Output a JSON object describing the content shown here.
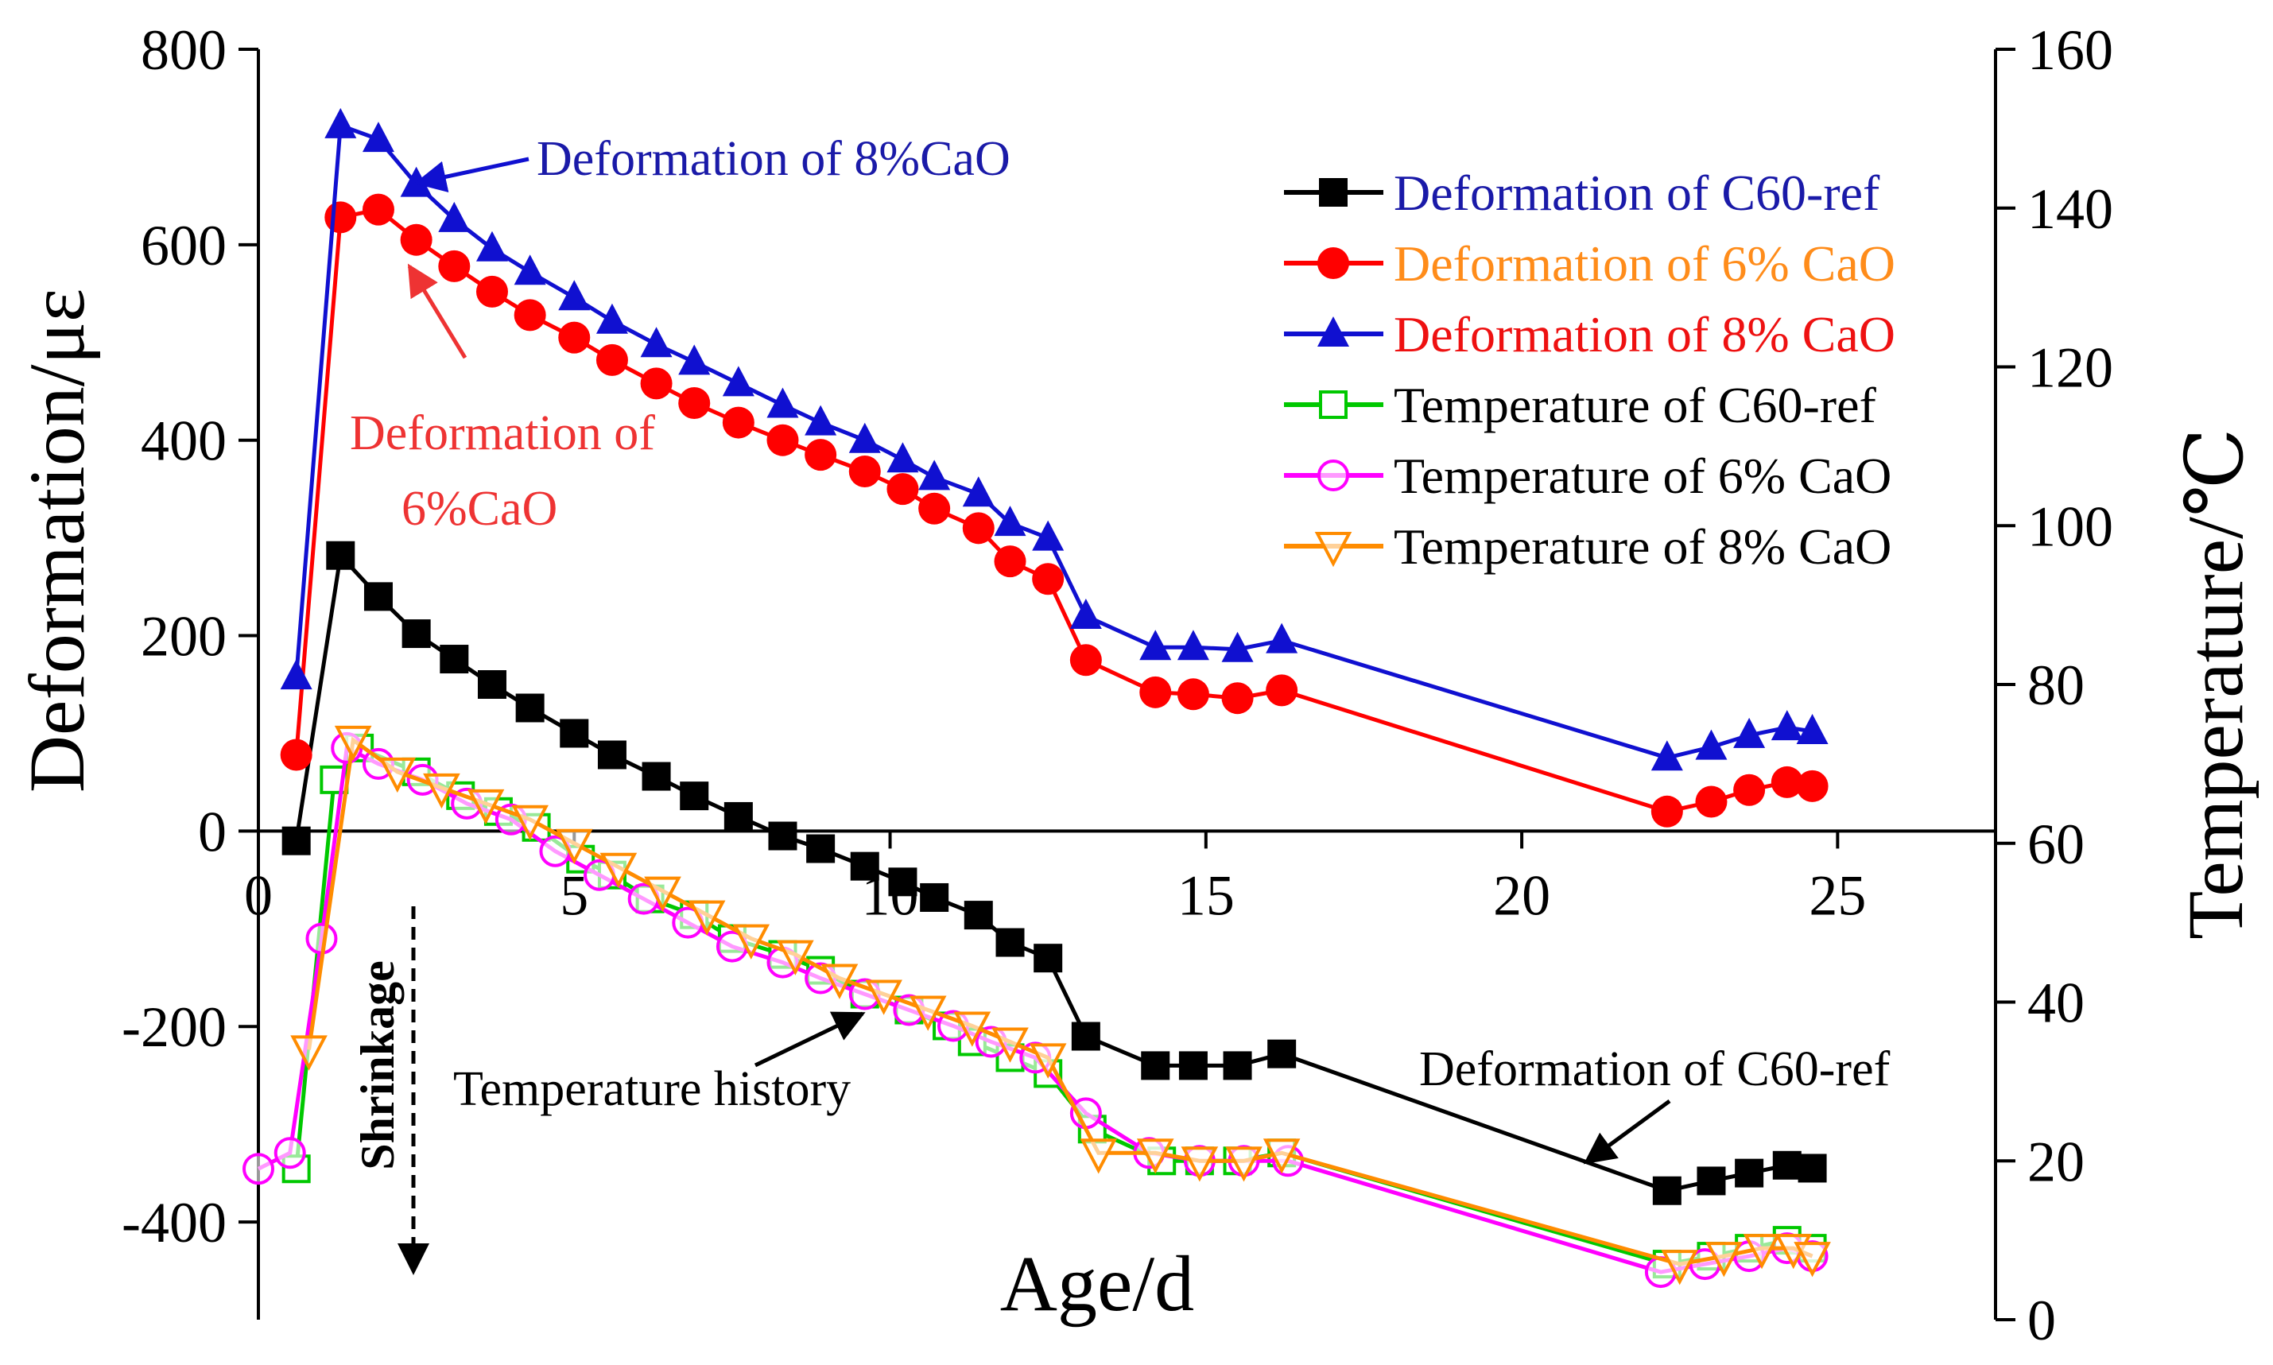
{
  "chart_data": {
    "type": "line",
    "xlabel": "Age/d",
    "ylabel_left": "Deformation/με",
    "ylabel_right": "Temperature/℃",
    "xlim": [
      0,
      27.5
    ],
    "ylim_left": [
      -500,
      800
    ],
    "ylim_right": [
      0,
      160
    ],
    "x_ticks": [
      0,
      5,
      10,
      15,
      20,
      25
    ],
    "y_left_ticks": [
      -400,
      -200,
      0,
      200,
      400,
      600,
      800
    ],
    "y_right_ticks": [
      0,
      20,
      40,
      60,
      80,
      100,
      120,
      140,
      160
    ],
    "grid": false,
    "legend_position": "top-right",
    "colors": {
      "c60_deformation": "#000000",
      "cao6_deformation": "#ff0000",
      "cao8_deformation": "#1010d0",
      "c60_temperature": "#00c800",
      "cao6_temperature": "#ff00ff",
      "cao8_temperature": "#ff8c00",
      "legend_label_blue": "#1a1aa8",
      "legend_label_orange": "#ff8c1a",
      "legend_label_red": "#ee1111",
      "annotation_red": "#ee3333"
    },
    "series": [
      {
        "name": "Deformation of C60-ref",
        "axis": "left",
        "marker": "square-filled",
        "color_key": "c60_deformation",
        "label_color_key": "legend_label_blue",
        "x": [
          0.6,
          1.3,
          1.9,
          2.5,
          3.1,
          3.7,
          4.3,
          5.0,
          5.6,
          6.3,
          6.9,
          7.6,
          8.3,
          8.9,
          9.6,
          10.2,
          10.7,
          11.4,
          11.9,
          12.5,
          13.1,
          14.2,
          14.8,
          15.5,
          16.2,
          22.3,
          23.0,
          23.6,
          24.2,
          24.6
        ],
        "y": [
          -10,
          282,
          240,
          202,
          176,
          150,
          126,
          100,
          78,
          56,
          36,
          15,
          -5,
          -18,
          -36,
          -52,
          -68,
          -86,
          -114,
          -130,
          -210,
          -240,
          -240,
          -240,
          -228,
          -368,
          -358,
          -350,
          -342,
          -345
        ]
      },
      {
        "name": "Deformation of 6% CaO",
        "axis": "left",
        "marker": "circle-filled",
        "color_key": "cao6_deformation",
        "label_color_key": "legend_label_orange",
        "x": [
          0.6,
          1.3,
          1.9,
          2.5,
          3.1,
          3.7,
          4.3,
          5.0,
          5.6,
          6.3,
          6.9,
          7.6,
          8.3,
          8.9,
          9.6,
          10.2,
          10.7,
          11.4,
          11.9,
          12.5,
          13.1,
          14.2,
          14.8,
          15.5,
          16.2,
          22.3,
          23.0,
          23.6,
          24.2,
          24.6
        ],
        "y": [
          78,
          628,
          636,
          605,
          578,
          552,
          528,
          505,
          482,
          458,
          438,
          418,
          400,
          385,
          368,
          350,
          330,
          310,
          276,
          258,
          175,
          142,
          140,
          136,
          144,
          20,
          30,
          42,
          50,
          46
        ]
      },
      {
        "name": "Deformation of 8% CaO",
        "axis": "left",
        "marker": "triangle-filled",
        "color_key": "cao8_deformation",
        "label_color_key": "legend_label_red",
        "x": [
          0.6,
          1.3,
          1.9,
          2.5,
          3.1,
          3.7,
          4.3,
          5.0,
          5.6,
          6.3,
          6.9,
          7.6,
          8.3,
          8.9,
          9.6,
          10.2,
          10.7,
          11.4,
          11.9,
          12.5,
          13.1,
          14.2,
          14.8,
          15.5,
          16.2,
          22.3,
          23.0,
          23.6,
          24.2,
          24.6
        ],
        "y": [
          158,
          722,
          708,
          662,
          626,
          596,
          572,
          546,
          522,
          498,
          480,
          458,
          436,
          418,
          400,
          380,
          362,
          345,
          315,
          300,
          220,
          188,
          188,
          186,
          195,
          75,
          86,
          98,
          106,
          102
        ]
      },
      {
        "name": "Temperature of C60-ref",
        "axis": "right",
        "marker": "square-open",
        "color_key": "c60_temperature",
        "label_color_key": "",
        "x": [
          0.6,
          1.2,
          1.6,
          2.5,
          3.2,
          3.8,
          4.4,
          5.1,
          5.6,
          6.2,
          6.9,
          7.5,
          8.3,
          8.9,
          9.6,
          10.3,
          10.9,
          11.3,
          11.9,
          12.5,
          13.2,
          14.3,
          14.9,
          15.5,
          16.2,
          22.3,
          23.0,
          23.6,
          24.2,
          24.6
        ],
        "y": [
          19,
          68,
          72,
          69,
          66,
          64,
          62,
          58,
          56,
          53,
          51,
          48,
          46,
          44,
          41,
          39,
          37,
          35,
          33,
          31,
          24,
          20,
          20,
          20,
          21,
          7,
          8,
          9,
          10,
          9
        ]
      },
      {
        "name": "Temperature of 6% CaO",
        "axis": "right",
        "marker": "circle-open",
        "color_key": "cao6_temperature",
        "label_color_key": "",
        "x": [
          0.0,
          0.5,
          1.0,
          1.4,
          1.9,
          2.6,
          3.3,
          4.0,
          4.7,
          5.4,
          6.1,
          6.8,
          7.5,
          8.3,
          8.9,
          9.6,
          10.3,
          11.0,
          11.6,
          12.3,
          13.1,
          14.1,
          14.9,
          15.6,
          16.3,
          22.2,
          22.9,
          23.6,
          24.2,
          24.6
        ],
        "y": [
          19,
          21,
          48,
          72,
          70,
          68,
          65,
          63,
          59,
          56,
          53,
          50,
          47,
          45,
          43,
          41,
          39,
          37,
          35,
          33,
          26,
          21,
          20,
          20,
          20,
          6,
          7,
          8,
          9,
          8
        ]
      },
      {
        "name": "Temperature of 8% CaO",
        "axis": "right",
        "marker": "triangle-down-open",
        "color_key": "cao8_temperature",
        "label_color_key": "",
        "x": [
          0.8,
          1.5,
          2.2,
          2.9,
          3.6,
          4.3,
          5.0,
          5.7,
          6.4,
          7.1,
          7.8,
          8.5,
          9.2,
          9.9,
          10.6,
          11.3,
          11.9,
          12.5,
          13.3,
          14.2,
          14.9,
          15.6,
          16.2,
          22.5,
          23.2,
          23.8,
          24.3,
          24.6
        ],
        "y": [
          34,
          73,
          69,
          67,
          65,
          63,
          60,
          57,
          54,
          51,
          48,
          46,
          43,
          41,
          39,
          37,
          35,
          33,
          21,
          21,
          20,
          20,
          21,
          7,
          8,
          9,
          9,
          8
        ]
      }
    ],
    "annotations": {
      "cao8_label": "Deformation of 8%CaO",
      "cao6_label_line1": "Deformation of",
      "cao6_label_line2": "6%CaO",
      "temperature_history": "Temperature history",
      "c60_label": "Deformation of C60-ref",
      "shrinkage": "Shrinkage"
    }
  }
}
